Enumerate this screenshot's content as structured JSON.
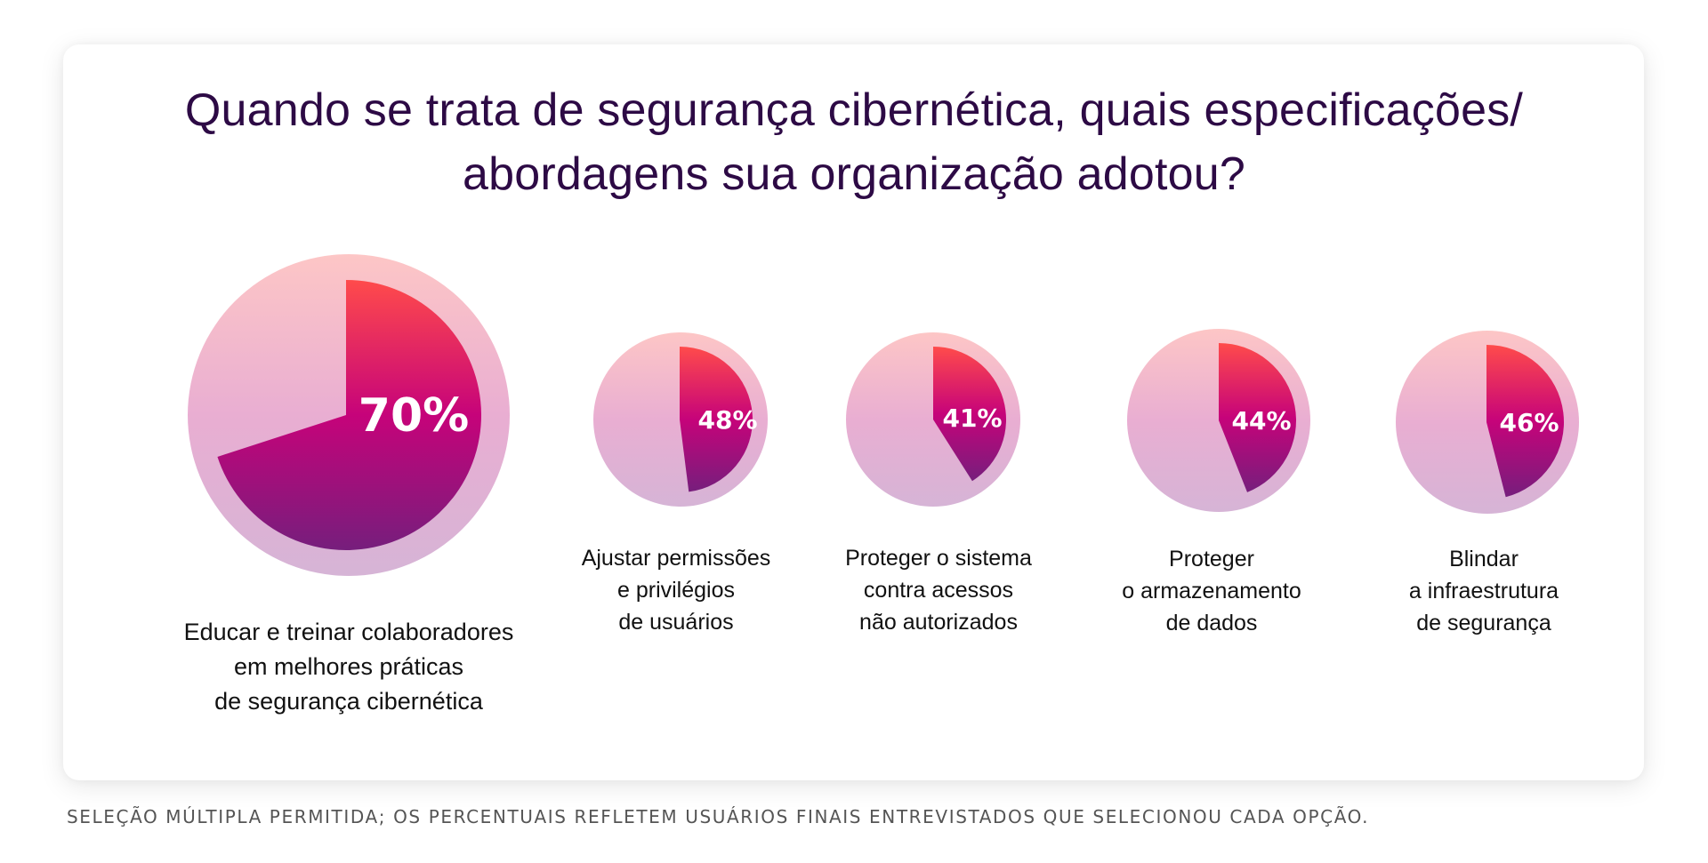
{
  "title": {
    "line1": "Quando se trata de segurança cibernética, quais especificações/",
    "line2": "abordagens sua organização adotou?"
  },
  "footnote": "SELEÇÃO MÚLTIPLA PERMITIDA; OS PERCENTUAIS REFLETEM USUÁRIOS FINAIS ENTREVISTADOS QUE SELECIONOU CADA OPÇÃO.",
  "colors": {
    "title": "#2d0a45",
    "slice_top": "#ff4b4b",
    "slice_mid": "#c6037a",
    "slice_bottom": "#761e7c",
    "bg_top": "#fdc6c6",
    "bg_mid": "#e9aed2",
    "bg_bottom": "#d6b4d6",
    "label": "#ffffff"
  },
  "chart_data": {
    "type": "pie",
    "title": "Quando se trata de segurança cibernética, quais especificações/abordagens sua organização adotou?",
    "unit": "%",
    "categories": [
      "Educar e treinar colaboradores em melhores práticas de segurança cibernética",
      "Ajustar permissões e privilégios de usuários",
      "Proteger o sistema contra acessos não autorizados",
      "Proteger o armazenamento de dados",
      "Blindar a infraestrutura de segurança"
    ],
    "values": [
      70,
      48,
      41,
      44,
      46
    ],
    "items": [
      {
        "value": 70,
        "label": "70%",
        "caption": [
          "Educar e treinar colaboradores",
          "em melhores práticas",
          "de segurança cibernética"
        ]
      },
      {
        "value": 48,
        "label": "48%",
        "caption": [
          "Ajustar permissões",
          "e privilégios",
          "de usuários"
        ]
      },
      {
        "value": 41,
        "label": "41%",
        "caption": [
          "Proteger o sistema",
          "contra acessos",
          "não autorizados"
        ]
      },
      {
        "value": 44,
        "label": "44%",
        "caption": [
          "Proteger",
          "o armazenamento",
          "de dados"
        ]
      },
      {
        "value": 46,
        "label": "46%",
        "caption": [
          "Blindar",
          "a infraestrutura",
          "de segurança"
        ]
      }
    ],
    "note": "Seleção múltipla permitida"
  }
}
